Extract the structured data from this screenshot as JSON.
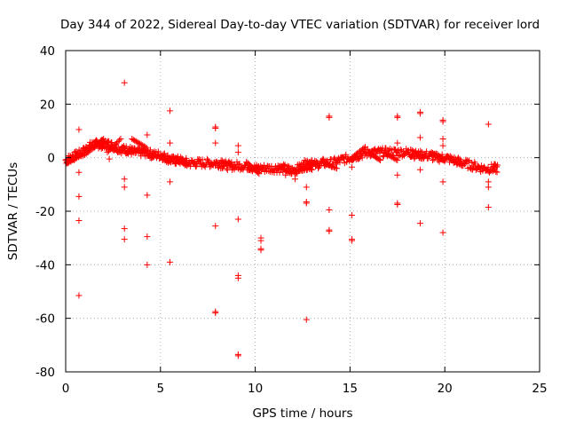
{
  "chart_data": {
    "type": "scatter",
    "title": "Day 344 of 2022, Sidereal Day-to-day VTEC variation (SDTVAR) for receiver lord",
    "xlabel": "GPS time / hours",
    "ylabel": "SDTVAR / TECUs",
    "xlim": [
      0,
      25
    ],
    "ylim": [
      -80,
      40
    ],
    "xticks": [
      0,
      5,
      10,
      15,
      20,
      25
    ],
    "yticks": [
      -80,
      -60,
      -40,
      -20,
      0,
      20,
      40
    ],
    "xtick_labels": [
      "0",
      "5",
      "10",
      "15",
      "20",
      "25"
    ],
    "ytick_labels": [
      "-80",
      "-60",
      "-40",
      "-20",
      "0",
      "20",
      "40"
    ],
    "grid": true,
    "marker": "+",
    "color": "#ff0000",
    "main_band": {
      "x": [
        0.0,
        0.3,
        0.6,
        0.9,
        1.2,
        1.5,
        1.8,
        2.0,
        2.3,
        2.6,
        3.0,
        3.3,
        3.6,
        4.0,
        4.3,
        4.6,
        5.0,
        5.3,
        5.6,
        6.0,
        6.5,
        7.0,
        7.5,
        8.0,
        8.5,
        9.0,
        9.5,
        10.0,
        10.5,
        11.0,
        11.5,
        12.0,
        12.3,
        12.6,
        13.0,
        13.5,
        14.0,
        14.5,
        15.0,
        15.5,
        16.0,
        16.5,
        17.0,
        17.5,
        18.0,
        18.5,
        19.0,
        19.5,
        20.0,
        20.5,
        21.0,
        21.5,
        22.0,
        22.5,
        22.8
      ],
      "y": [
        -1,
        0,
        1,
        2,
        4,
        5,
        5,
        5,
        5,
        4,
        3,
        3,
        2,
        2,
        2,
        1,
        1,
        0,
        -1,
        -1,
        -2,
        -2,
        -2,
        -2,
        -3,
        -3,
        -3,
        -4,
        -4,
        -4,
        -4,
        -5,
        -4,
        -3,
        -3,
        -2,
        -2,
        -1,
        0,
        1,
        2,
        2,
        2,
        2,
        2,
        1,
        1,
        0,
        0,
        -1,
        -2,
        -3,
        -4,
        -4,
        -4
      ]
    },
    "segments": [
      {
        "x0": 0.1,
        "y0": -2,
        "x1": 0.7,
        "y1": 1
      },
      {
        "x0": 1.0,
        "y0": 1,
        "x1": 1.9,
        "y1": 6
      },
      {
        "x0": 1.2,
        "y0": 3,
        "x1": 2.0,
        "y1": 7
      },
      {
        "x0": 2.2,
        "y0": 2,
        "x1": 2.9,
        "y1": 7
      },
      {
        "x0": 3.5,
        "y0": 7,
        "x1": 4.2,
        "y1": 4
      },
      {
        "x0": 5.8,
        "y0": 0,
        "x1": 6.4,
        "y1": -3
      },
      {
        "x0": 8.2,
        "y0": -1,
        "x1": 8.9,
        "y1": -4
      },
      {
        "x0": 9.6,
        "y0": -2,
        "x1": 10.2,
        "y1": -6
      },
      {
        "x0": 11.2,
        "y0": -3,
        "x1": 11.9,
        "y1": -6
      },
      {
        "x0": 12.3,
        "y0": -5,
        "x1": 13.0,
        "y1": -1
      },
      {
        "x0": 12.6,
        "y0": -1,
        "x1": 13.4,
        "y1": -3
      },
      {
        "x0": 13.6,
        "y0": -2,
        "x1": 14.3,
        "y1": -4
      },
      {
        "x0": 15.1,
        "y0": 0,
        "x1": 15.8,
        "y1": 4
      },
      {
        "x0": 16.0,
        "y0": 2,
        "x1": 16.6,
        "y1": -1
      },
      {
        "x0": 16.8,
        "y0": 2,
        "x1": 17.5,
        "y1": -1
      },
      {
        "x0": 18.2,
        "y0": 3,
        "x1": 18.9,
        "y1": 0
      },
      {
        "x0": 19.3,
        "y0": 2,
        "x1": 19.9,
        "y1": -1
      },
      {
        "x0": 20.2,
        "y0": 0,
        "x1": 20.9,
        "y1": -3
      }
    ],
    "outliers": [
      {
        "x": 0.7,
        "y": 10.5
      },
      {
        "x": 0.7,
        "y": -5.5
      },
      {
        "x": 0.7,
        "y": -14.5
      },
      {
        "x": 0.7,
        "y": -23.5
      },
      {
        "x": 0.7,
        "y": -51.5
      },
      {
        "x": 2.3,
        "y": -0.5
      },
      {
        "x": 3.1,
        "y": 28
      },
      {
        "x": 3.1,
        "y": -8
      },
      {
        "x": 3.1,
        "y": -11
      },
      {
        "x": 3.1,
        "y": -26.5
      },
      {
        "x": 3.1,
        "y": -30.5
      },
      {
        "x": 4.3,
        "y": 8.5
      },
      {
        "x": 4.3,
        "y": -14
      },
      {
        "x": 4.3,
        "y": -29.5
      },
      {
        "x": 4.3,
        "y": -40
      },
      {
        "x": 5.5,
        "y": 17.5
      },
      {
        "x": 5.5,
        "y": 5.5
      },
      {
        "x": 5.5,
        "y": -9
      },
      {
        "x": 5.5,
        "y": -39
      },
      {
        "x": 7.9,
        "y": 11.5
      },
      {
        "x": 7.9,
        "y": 11
      },
      {
        "x": 7.9,
        "y": 5.5
      },
      {
        "x": 7.9,
        "y": -25.5
      },
      {
        "x": 7.9,
        "y": -57.5
      },
      {
        "x": 7.9,
        "y": -58
      },
      {
        "x": 9.1,
        "y": 4.5
      },
      {
        "x": 9.1,
        "y": 2
      },
      {
        "x": 9.1,
        "y": -23
      },
      {
        "x": 9.1,
        "y": -44
      },
      {
        "x": 9.1,
        "y": -45
      },
      {
        "x": 9.1,
        "y": -73.5
      },
      {
        "x": 9.1,
        "y": -74
      },
      {
        "x": 10.3,
        "y": -30
      },
      {
        "x": 10.3,
        "y": -31
      },
      {
        "x": 10.3,
        "y": -34
      },
      {
        "x": 10.3,
        "y": -34.5
      },
      {
        "x": 11.6,
        "y": -6.5
      },
      {
        "x": 12.1,
        "y": -8
      },
      {
        "x": 12.7,
        "y": -11
      },
      {
        "x": 12.7,
        "y": -16.5
      },
      {
        "x": 12.7,
        "y": -17
      },
      {
        "x": 12.7,
        "y": -60.5
      },
      {
        "x": 13.9,
        "y": 15
      },
      {
        "x": 13.9,
        "y": 15.5
      },
      {
        "x": 13.9,
        "y": -19.5
      },
      {
        "x": 13.9,
        "y": -27
      },
      {
        "x": 13.9,
        "y": -27.5
      },
      {
        "x": 15.1,
        "y": -3.5
      },
      {
        "x": 15.1,
        "y": -21.5
      },
      {
        "x": 15.1,
        "y": -30.5
      },
      {
        "x": 15.1,
        "y": -31
      },
      {
        "x": 17.5,
        "y": 15
      },
      {
        "x": 17.5,
        "y": 15.5
      },
      {
        "x": 17.5,
        "y": 5.5
      },
      {
        "x": 17.5,
        "y": -6.5
      },
      {
        "x": 17.5,
        "y": -17
      },
      {
        "x": 17.5,
        "y": -17.5
      },
      {
        "x": 18.7,
        "y": 17
      },
      {
        "x": 18.7,
        "y": 16.5
      },
      {
        "x": 18.7,
        "y": 7.5
      },
      {
        "x": 18.7,
        "y": -4.5
      },
      {
        "x": 18.7,
        "y": -24.5
      },
      {
        "x": 19.9,
        "y": 14
      },
      {
        "x": 19.9,
        "y": 13.5
      },
      {
        "x": 19.9,
        "y": 7
      },
      {
        "x": 19.9,
        "y": 4.5
      },
      {
        "x": 19.9,
        "y": -9
      },
      {
        "x": 19.9,
        "y": -28
      },
      {
        "x": 22.3,
        "y": 12.5
      },
      {
        "x": 22.3,
        "y": -9
      },
      {
        "x": 22.3,
        "y": -11
      },
      {
        "x": 22.3,
        "y": -18.5
      }
    ]
  }
}
